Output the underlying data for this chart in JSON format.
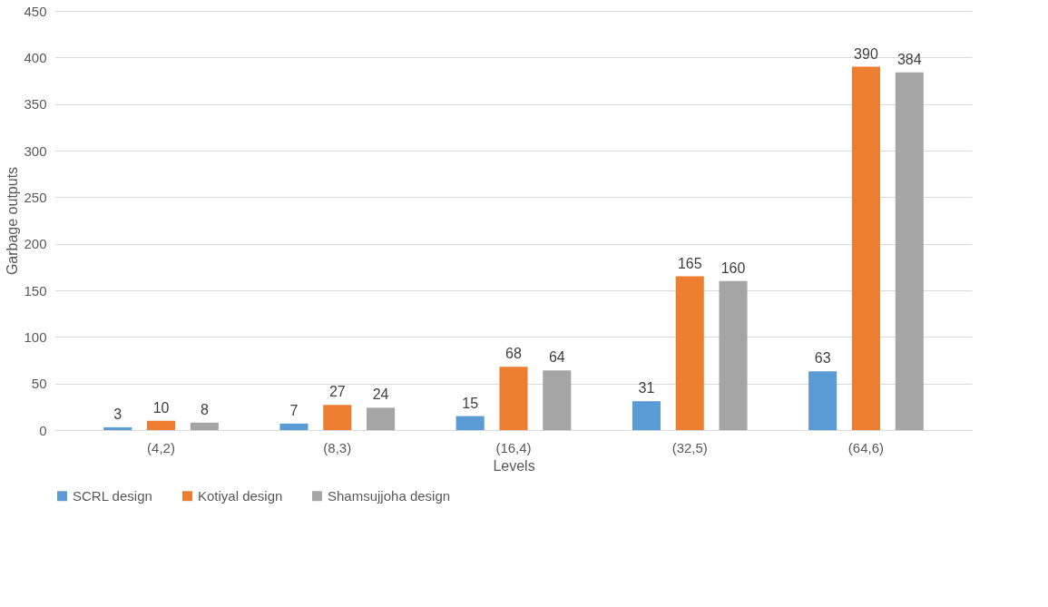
{
  "chart_data": {
    "type": "bar",
    "xlabel": "Levels",
    "ylabel": "Garbage outputs",
    "categories": [
      "(4,2)",
      "(8,3)",
      "(16,4)",
      "(32,5)",
      "(64,6)"
    ],
    "series": [
      {
        "name": "SCRL design",
        "color": "#5b9bd5",
        "values": [
          3,
          7,
          15,
          31,
          63
        ]
      },
      {
        "name": "Kotiyal design",
        "color": "#ed7d31",
        "values": [
          10,
          27,
          68,
          165,
          390
        ]
      },
      {
        "name": "Shamsujjoha design",
        "color": "#a5a5a5",
        "values": [
          8,
          24,
          64,
          160,
          384
        ]
      }
    ],
    "ylim": [
      0,
      450
    ],
    "yticks": [
      0,
      50,
      100,
      150,
      200,
      250,
      300,
      350,
      400,
      450
    ],
    "grid": "y",
    "legend": "bottom",
    "data_labels": true
  }
}
